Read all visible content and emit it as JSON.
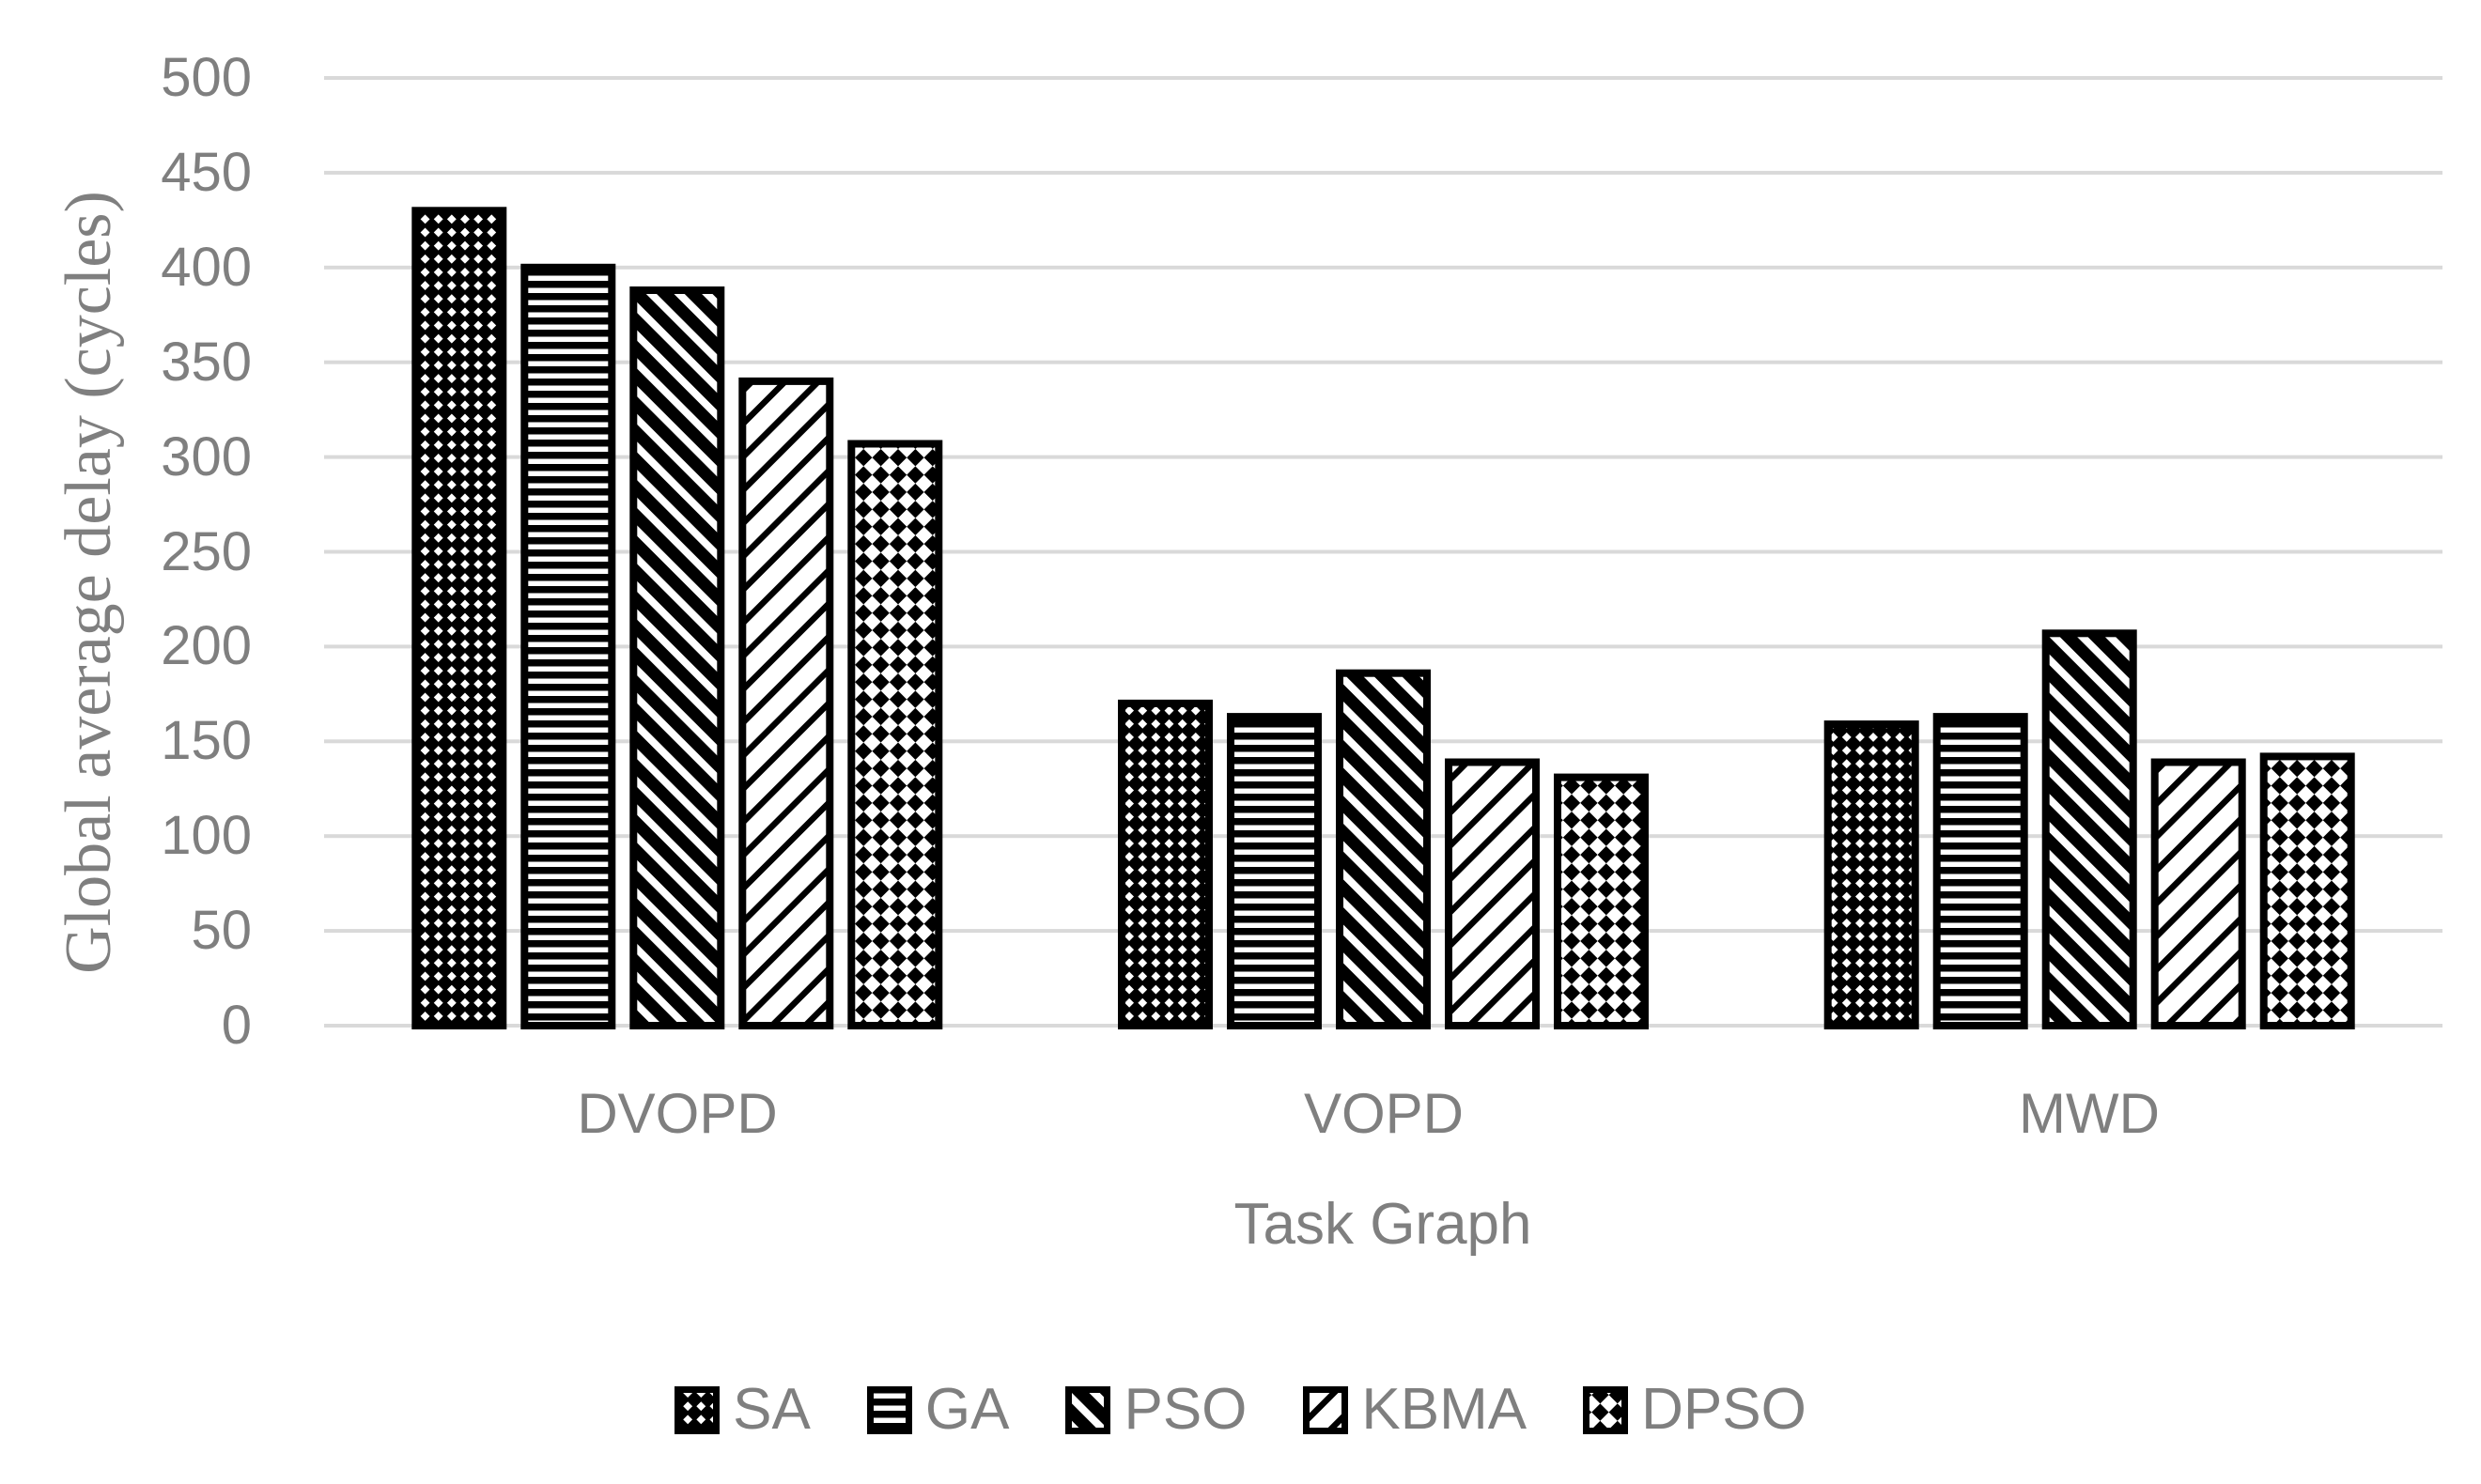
{
  "chart_data": {
    "type": "bar",
    "title": "",
    "categories": [
      "DVOPD",
      "VOPD",
      "MWD"
    ],
    "series": [
      {
        "name": "SA",
        "pattern": "checker-diamond-fine",
        "values": [
          430,
          170,
          159
        ]
      },
      {
        "name": "GA",
        "pattern": "horizontal-stripes",
        "values": [
          400,
          163,
          163
        ]
      },
      {
        "name": "PSO",
        "pattern": "diagonal-down-thick",
        "values": [
          388,
          186,
          207
        ]
      },
      {
        "name": "KBMA",
        "pattern": "diagonal-up-thin",
        "values": [
          340,
          139,
          139
        ]
      },
      {
        "name": "DPSO",
        "pattern": "checker-diamond-coarse",
        "values": [
          307,
          131,
          142
        ]
      }
    ],
    "xlabel": "Task Graph",
    "ylabel": "Global average delay (cycles)",
    "ylim": [
      0,
      500
    ],
    "ytick_step": 50,
    "grid": "horizontal",
    "legend_position": "bottom",
    "colors": {
      "bar_pattern": "#000000",
      "bar_background": "#ffffff",
      "gridline": "#d9d9d9",
      "axis_text": "#7f7f7f"
    }
  },
  "y_axis": {
    "title": "Global average delay (cycles)",
    "ticks": [
      "500",
      "450",
      "400",
      "350",
      "300",
      "250",
      "200",
      "150",
      "100",
      "50",
      "0"
    ]
  },
  "x_axis": {
    "title": "Task Graph",
    "categories": [
      "DVOPD",
      "VOPD",
      "MWD"
    ]
  },
  "legend": {
    "items": [
      {
        "label": "SA",
        "pattern": "checker-diamond-fine"
      },
      {
        "label": "GA",
        "pattern": "horizontal-stripes"
      },
      {
        "label": "PSO",
        "pattern": "diagonal-down-thick"
      },
      {
        "label": "KBMA",
        "pattern": "diagonal-up-thin"
      },
      {
        "label": "DPSO",
        "pattern": "checker-diamond-coarse"
      }
    ]
  }
}
